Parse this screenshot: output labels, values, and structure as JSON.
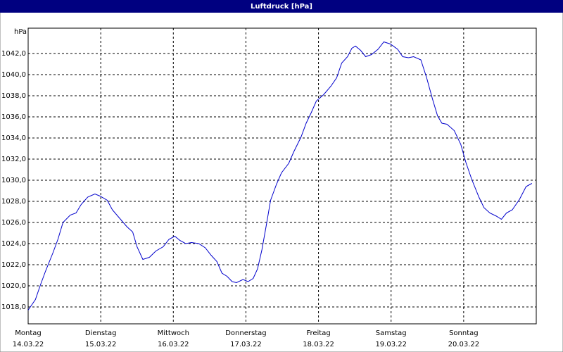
{
  "chart_data": {
    "type": "line",
    "title": "Luftdruck [hPa]",
    "y_label": "hPa",
    "x": [
      0,
      0.1,
      0.17,
      0.24,
      0.34,
      0.41,
      0.48,
      0.58,
      0.66,
      0.73,
      0.82,
      0.92,
      0.99,
      1.09,
      1.16,
      1.26,
      1.36,
      1.44,
      1.5,
      1.58,
      1.67,
      1.76,
      1.86,
      1.94,
      2.02,
      2.09,
      2.17,
      2.25,
      2.35,
      2.44,
      2.52,
      2.6,
      2.67,
      2.74,
      2.81,
      2.87,
      2.96,
      3.03,
      3.1,
      3.16,
      3.22,
      3.28,
      3.34,
      3.42,
      3.49,
      3.59,
      3.66,
      3.76,
      3.83,
      3.9,
      3.97,
      4.07,
      4.17,
      4.25,
      4.32,
      4.4,
      4.46,
      4.51,
      4.58,
      4.65,
      4.73,
      4.82,
      4.9,
      4.99,
      5.09,
      5.16,
      5.24,
      5.31,
      5.41,
      5.49,
      5.57,
      5.64,
      5.7,
      5.77,
      5.87,
      5.96,
      6.03,
      6.11,
      6.21,
      6.28,
      6.36,
      6.45,
      6.52,
      6.59,
      6.67,
      6.77,
      6.86,
      6.94
    ],
    "series": [
      {
        "color": "#0000cc",
        "values": [
          1017.7,
          1018.7,
          1020.1,
          1021.4,
          1023.1,
          1024.4,
          1026.0,
          1026.7,
          1026.9,
          1027.7,
          1028.4,
          1028.7,
          1028.5,
          1028.1,
          1027.2,
          1026.4,
          1025.6,
          1025.1,
          1023.7,
          1022.5,
          1022.7,
          1023.3,
          1023.7,
          1024.4,
          1024.7,
          1024.3,
          1024.0,
          1024.1,
          1024.0,
          1023.6,
          1022.9,
          1022.3,
          1021.2,
          1020.9,
          1020.4,
          1020.3,
          1020.6,
          1020.4,
          1020.7,
          1021.6,
          1023.4,
          1025.7,
          1028.1,
          1029.6,
          1030.7,
          1031.6,
          1032.7,
          1034.1,
          1035.4,
          1036.4,
          1037.5,
          1038.1,
          1038.9,
          1039.7,
          1041.1,
          1041.7,
          1042.5,
          1042.7,
          1042.3,
          1041.7,
          1041.9,
          1042.4,
          1043.1,
          1042.9,
          1042.4,
          1041.7,
          1041.6,
          1041.7,
          1041.4,
          1039.7,
          1037.7,
          1036.1,
          1035.4,
          1035.3,
          1034.7,
          1033.4,
          1031.7,
          1030.1,
          1028.4,
          1027.4,
          1026.9,
          1026.6,
          1026.3,
          1026.9,
          1027.2,
          1028.2,
          1029.4,
          1029.7
        ]
      }
    ],
    "xlim": [
      0,
      7
    ],
    "xticks": [
      {
        "value": 0,
        "label": "Montag"
      },
      {
        "value": 1,
        "label": "Dienstag"
      },
      {
        "value": 2,
        "label": "Mittwoch"
      },
      {
        "value": 3,
        "label": "Donnerstag"
      },
      {
        "value": 4,
        "label": "Freitag"
      },
      {
        "value": 5,
        "label": "Samstag"
      },
      {
        "value": 6,
        "label": "Sonntag"
      }
    ],
    "xtick_dates": [
      "14.03.22",
      "15.03.22",
      "16.03.22",
      "17.03.22",
      "18.03.22",
      "19.03.22",
      "20.03.22"
    ],
    "ylim": [
      1016.4,
      1044.4
    ],
    "yticks": [
      {
        "value": 1018,
        "label": "1018,0"
      },
      {
        "value": 1020,
        "label": "1020,0"
      },
      {
        "value": 1022,
        "label": "1022,0"
      },
      {
        "value": 1024,
        "label": "1024,0"
      },
      {
        "value": 1026,
        "label": "1026,0"
      },
      {
        "value": 1028,
        "label": "1028,0"
      },
      {
        "value": 1030,
        "label": "1030,0"
      },
      {
        "value": 1032,
        "label": "1032,0"
      },
      {
        "value": 1034,
        "label": "1034,0"
      },
      {
        "value": 1036,
        "label": "1036,0"
      },
      {
        "value": 1038,
        "label": "1038,0"
      },
      {
        "value": 1040,
        "label": "1040,0"
      },
      {
        "value": 1042,
        "label": "1042,0"
      }
    ],
    "grid": true
  }
}
